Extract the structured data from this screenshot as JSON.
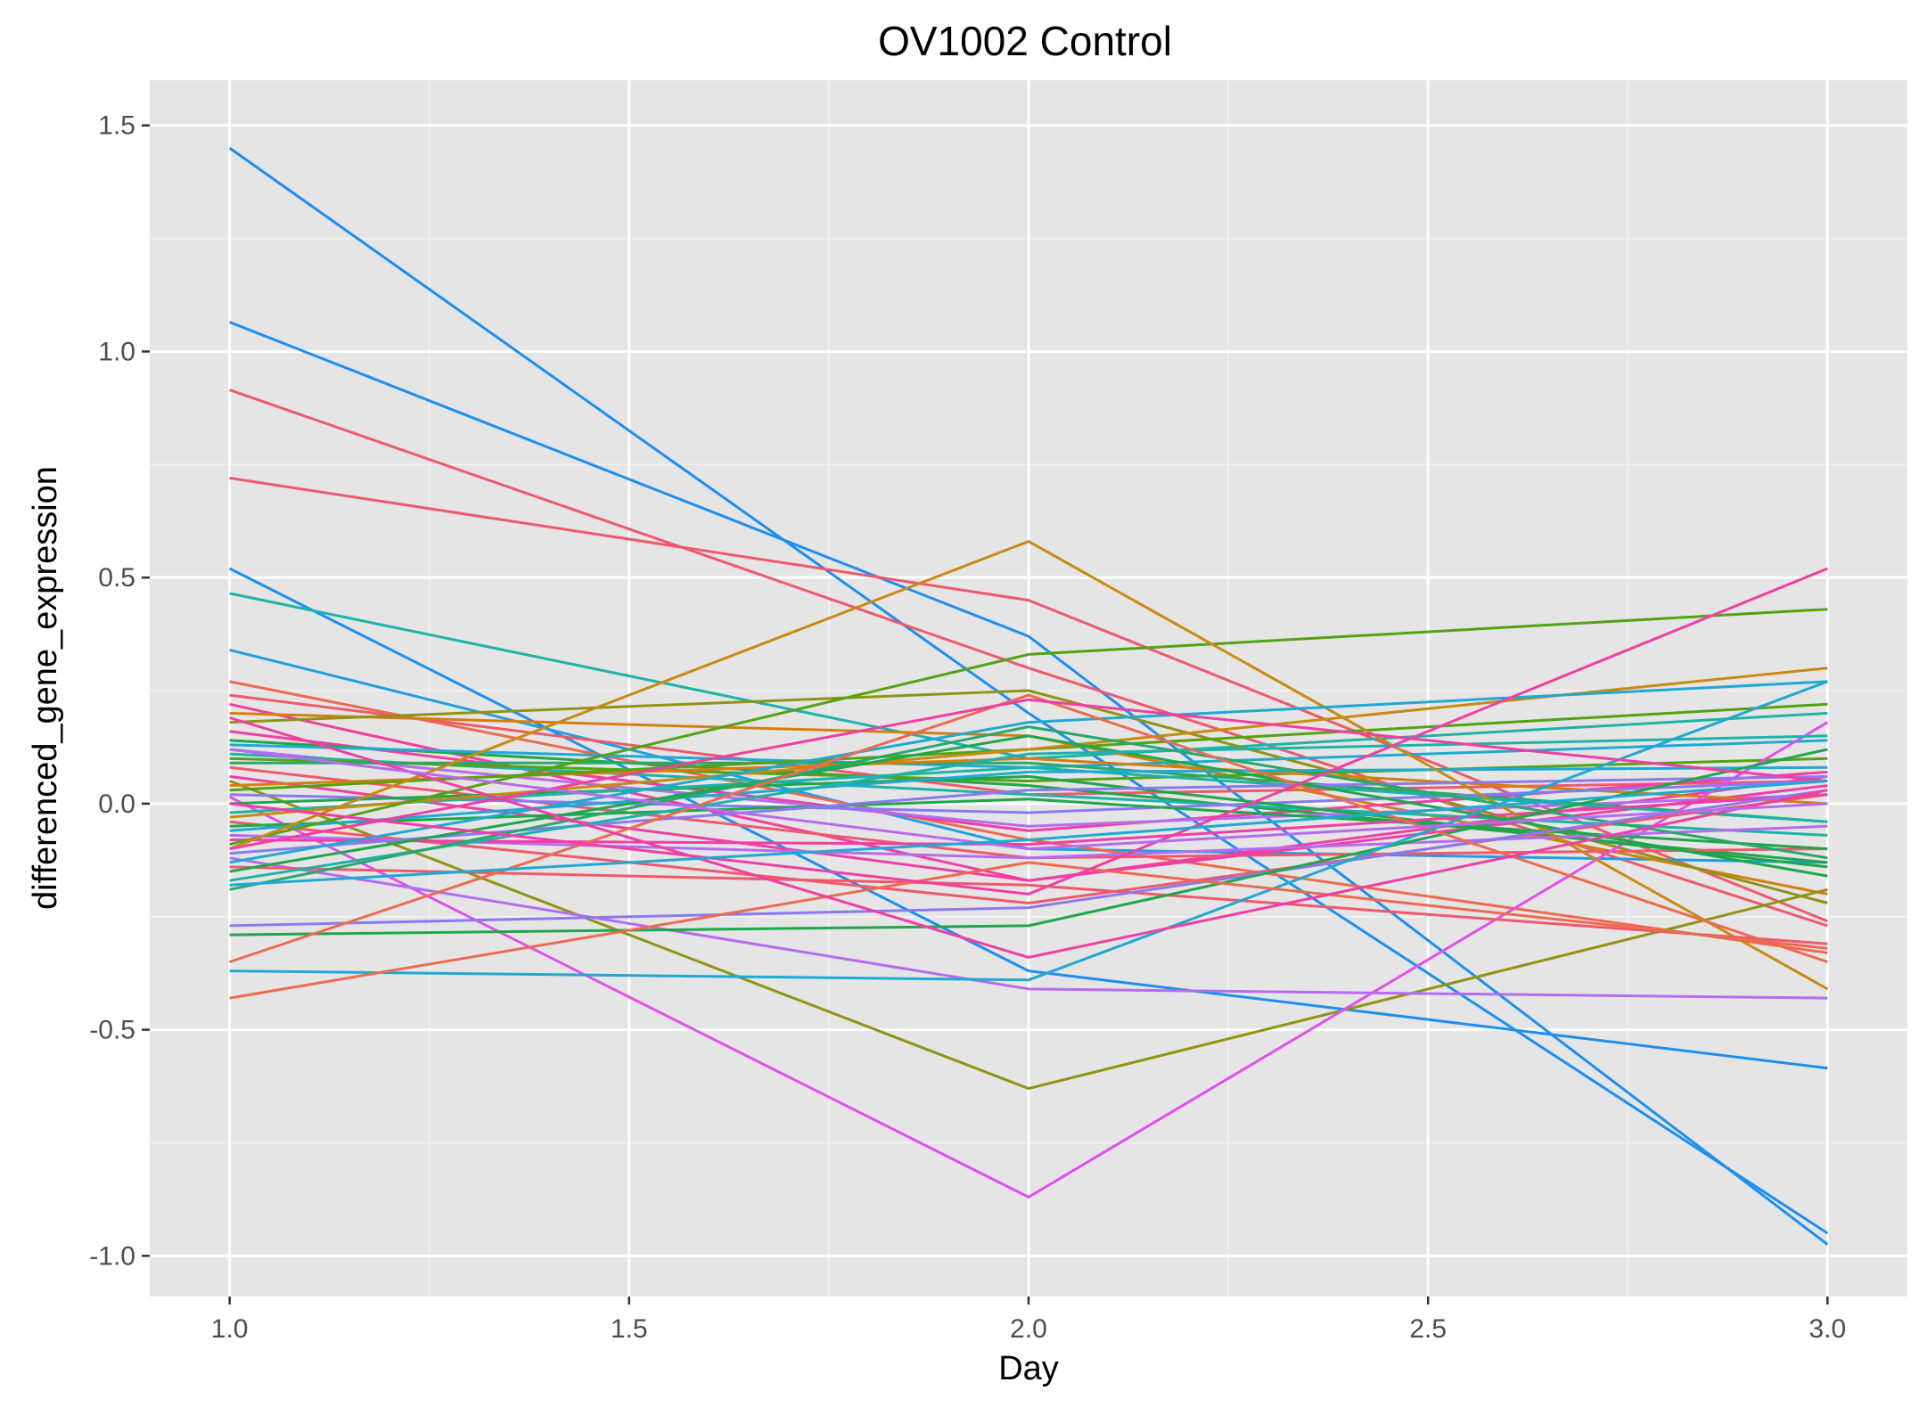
{
  "chart_data": {
    "type": "line",
    "title": "OV1002 Control",
    "xlabel": "Day",
    "ylabel": "differenced_gene_expression",
    "x": [
      1,
      2,
      3
    ],
    "xlim": [
      0.9,
      3.1
    ],
    "ylim": [
      -1.09,
      1.6
    ],
    "xticks": [
      1.0,
      1.5,
      2.0,
      2.5,
      3.0
    ],
    "xtick_labels": [
      "1.0",
      "1.5",
      "2.0",
      "2.5",
      "3.0"
    ],
    "yticks": [
      -1.0,
      -0.5,
      0.0,
      0.5,
      1.0,
      1.5
    ],
    "ytick_labels": [
      "-1.0",
      "-0.5",
      "0.0",
      "0.5",
      "1.0",
      "1.5"
    ],
    "grid": true,
    "legend": "none",
    "panel_background": "#e5e5e5",
    "grid_color": "#ffffff",
    "series": [
      {
        "values": [
          1.45,
          0.2,
          -0.95
        ],
        "color": "#1c8ff0"
      },
      {
        "values": [
          1.065,
          0.37,
          -0.975
        ],
        "color": "#1c8ff0"
      },
      {
        "values": [
          0.915,
          0.3,
          -0.27
        ],
        "color": "#f0596c"
      },
      {
        "values": [
          0.72,
          0.45,
          -0.26
        ],
        "color": "#f0596c"
      },
      {
        "values": [
          0.52,
          -0.37,
          -0.585
        ],
        "color": "#1c8ff0"
      },
      {
        "values": [
          0.465,
          0.1,
          0.2
        ],
        "color": "#1db3a8"
      },
      {
        "values": [
          0.34,
          -0.1,
          -0.13
        ],
        "color": "#1f9fe0"
      },
      {
        "values": [
          0.27,
          -0.08,
          -0.33
        ],
        "color": "#ec6b50"
      },
      {
        "values": [
          0.24,
          0.02,
          0.05
        ],
        "color": "#f0596c"
      },
      {
        "values": [
          0.22,
          -0.17,
          0.06
        ],
        "color": "#f03fa3"
      },
      {
        "values": [
          0.2,
          0.15,
          -0.2
        ],
        "color": "#d47f11"
      },
      {
        "values": [
          0.18,
          0.25,
          -0.22
        ],
        "color": "#8f9412"
      },
      {
        "values": [
          0.16,
          -0.06,
          0.07
        ],
        "color": "#f03fa3"
      },
      {
        "values": [
          0.14,
          0.04,
          -0.13
        ],
        "color": "#1fa74a"
      },
      {
        "values": [
          0.13,
          0.08,
          0.14
        ],
        "color": "#20a9d2"
      },
      {
        "values": [
          0.12,
          -0.05,
          0.02
        ],
        "color": "#b56cf0"
      },
      {
        "values": [
          0.11,
          0.02,
          -0.07
        ],
        "color": "#1db3a8"
      },
      {
        "values": [
          0.1,
          0.05,
          0.1
        ],
        "color": "#53a313"
      },
      {
        "values": [
          0.09,
          0.09,
          -0.04
        ],
        "color": "#29a86c"
      },
      {
        "values": [
          0.08,
          -0.12,
          -0.1
        ],
        "color": "#f0596c"
      },
      {
        "values": [
          0.06,
          -0.17,
          0.04
        ],
        "color": "#f03fa3"
      },
      {
        "values": [
          0.05,
          -0.63,
          -0.19
        ],
        "color": "#8f9412"
      },
      {
        "values": [
          0.04,
          0.1,
          0.0
        ],
        "color": "#d47f11"
      },
      {
        "values": [
          0.03,
          0.12,
          0.22
        ],
        "color": "#53a313"
      },
      {
        "values": [
          0.02,
          -0.02,
          0.05
        ],
        "color": "#8b79f0"
      },
      {
        "values": [
          0.015,
          -0.87,
          0.18
        ],
        "color": "#e14ff0"
      },
      {
        "values": [
          0.0,
          0.06,
          -0.14
        ],
        "color": "#1fa74a"
      },
      {
        "values": [
          -0.02,
          0.08,
          -0.04
        ],
        "color": "#1db3a8"
      },
      {
        "values": [
          -0.03,
          0.12,
          0.3
        ],
        "color": "#c98a10"
      },
      {
        "values": [
          -0.04,
          -0.22,
          0.02
        ],
        "color": "#f0596c"
      },
      {
        "values": [
          -0.05,
          0.01,
          -0.1
        ],
        "color": "#1fa74a"
      },
      {
        "values": [
          -0.06,
          0.07,
          0.08
        ],
        "color": "#20a9d2"
      },
      {
        "values": [
          -0.07,
          -0.12,
          -0.05
        ],
        "color": "#b56cf0"
      },
      {
        "values": [
          -0.08,
          -0.09,
          0.02
        ],
        "color": "#f03fa3"
      },
      {
        "values": [
          -0.09,
          0.33,
          0.43
        ],
        "color": "#53a313"
      },
      {
        "values": [
          -0.1,
          0.58,
          -0.41
        ],
        "color": "#c98a10"
      },
      {
        "values": [
          -0.11,
          0.03,
          0.06
        ],
        "color": "#8b79f0"
      },
      {
        "values": [
          -0.12,
          -0.41,
          -0.43
        ],
        "color": "#b56cf0"
      },
      {
        "values": [
          -0.13,
          0.18,
          0.27
        ],
        "color": "#20a9d2"
      },
      {
        "values": [
          -0.14,
          -0.18,
          -0.31
        ],
        "color": "#f0596c"
      },
      {
        "values": [
          -0.15,
          0.15,
          -0.16
        ],
        "color": "#1fa74a"
      },
      {
        "values": [
          -0.17,
          0.11,
          0.15
        ],
        "color": "#1db3a8"
      },
      {
        "values": [
          -0.19,
          0.17,
          -0.12
        ],
        "color": "#29a86c"
      },
      {
        "values": [
          -0.27,
          -0.23,
          0.03
        ],
        "color": "#8b79f0"
      },
      {
        "values": [
          -0.29,
          -0.27,
          0.12
        ],
        "color": "#1fa74a"
      },
      {
        "values": [
          -0.35,
          0.24,
          -0.35
        ],
        "color": "#ec6b50"
      },
      {
        "values": [
          -0.37,
          -0.39,
          0.27
        ],
        "color": "#20a9d2"
      },
      {
        "values": [
          -0.43,
          -0.13,
          -0.32
        ],
        "color": "#ec6b50"
      },
      {
        "values": [
          -0.1,
          0.23,
          0.05
        ],
        "color": "#f03fa3"
      },
      {
        "values": [
          0.19,
          -0.34,
          0.03
        ],
        "color": "#f03fa3"
      },
      {
        "values": [
          0.0,
          -0.2,
          0.52
        ],
        "color": "#f03fa3"
      },
      {
        "values": [
          0.12,
          -0.1,
          0.0
        ],
        "color": "#b56cf0"
      },
      {
        "values": [
          -0.18,
          -0.08,
          0.05
        ],
        "color": "#20a9d2"
      }
    ]
  }
}
